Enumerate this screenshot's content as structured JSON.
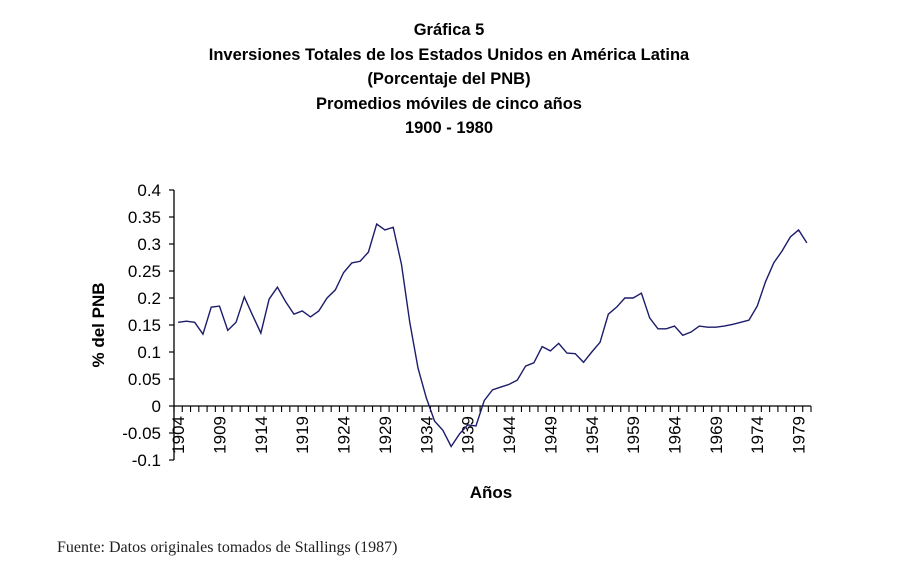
{
  "header": {
    "label": "Gráfica 5",
    "title": "Inversiones Totales de los Estados Unidos en América Latina",
    "subtitle": "(Porcentaje del PNB)",
    "subtitle2": "Promedios móviles de cinco años",
    "period": "1900 - 1980"
  },
  "source": "Fuente: Datos originales tomados de Stallings (1987)",
  "chart_data": {
    "type": "line",
    "title": "Inversiones Totales de los Estados Unidos en América Latina (Porcentaje del PNB) Promedios móviles de cinco años 1900 - 1980",
    "xlabel": "Años",
    "ylabel": "% del PNB",
    "ylim": [
      -0.1,
      0.4
    ],
    "yticks": [
      -0.1,
      -0.05,
      0,
      0.05,
      0.1,
      0.15,
      0.2,
      0.25,
      0.3,
      0.35,
      0.4
    ],
    "ytick_labels": [
      "-0.1",
      "-0.05",
      "0",
      "0.05",
      "0.1",
      "0.15",
      "0.2",
      "0.25",
      "0.3",
      "0.35",
      "0.4"
    ],
    "xtick_labels": [
      "1904",
      "1909",
      "1914",
      "1919",
      "1924",
      "1929",
      "1934",
      "1939",
      "1944",
      "1949",
      "1954",
      "1959",
      "1964",
      "1969",
      "1974",
      "1979"
    ],
    "grid": false,
    "legend": "none",
    "line_color": "#1c1c6b",
    "x": [
      1904,
      1905,
      1906,
      1907,
      1908,
      1909,
      1910,
      1911,
      1912,
      1913,
      1914,
      1915,
      1916,
      1917,
      1918,
      1919,
      1920,
      1921,
      1922,
      1923,
      1924,
      1925,
      1926,
      1927,
      1928,
      1929,
      1930,
      1931,
      1932,
      1933,
      1934,
      1935,
      1936,
      1937,
      1938,
      1939,
      1940,
      1941,
      1942,
      1943,
      1944,
      1945,
      1946,
      1947,
      1948,
      1949,
      1950,
      1951,
      1952,
      1953,
      1954,
      1955,
      1956,
      1957,
      1958,
      1959,
      1960,
      1961,
      1962,
      1963,
      1964,
      1965,
      1966,
      1967,
      1968,
      1969,
      1970,
      1971,
      1972,
      1973,
      1974,
      1975,
      1976,
      1977,
      1978,
      1979,
      1980
    ],
    "series": [
      {
        "name": "% del PNB",
        "values": [
          0.155,
          0.157,
          0.155,
          0.133,
          0.183,
          0.185,
          0.14,
          0.155,
          0.202,
          0.168,
          0.135,
          0.198,
          0.22,
          0.193,
          0.17,
          0.176,
          0.165,
          0.176,
          0.2,
          0.215,
          0.247,
          0.265,
          0.268,
          0.285,
          0.337,
          0.326,
          0.331,
          0.262,
          0.155,
          0.07,
          0.015,
          -0.028,
          -0.045,
          -0.075,
          -0.052,
          -0.035,
          -0.037,
          0.01,
          0.03,
          0.035,
          0.04,
          0.048,
          0.074,
          0.08,
          0.11,
          0.102,
          0.116,
          0.098,
          0.097,
          0.081,
          0.1,
          0.118,
          0.17,
          0.183,
          0.2,
          0.2,
          0.209,
          0.163,
          0.143,
          0.143,
          0.148,
          0.131,
          0.137,
          0.148,
          0.146,
          0.146,
          0.148,
          0.151,
          0.155,
          0.159,
          0.185,
          0.23,
          0.265,
          0.287,
          0.313,
          0.326,
          0.302
        ]
      }
    ]
  }
}
